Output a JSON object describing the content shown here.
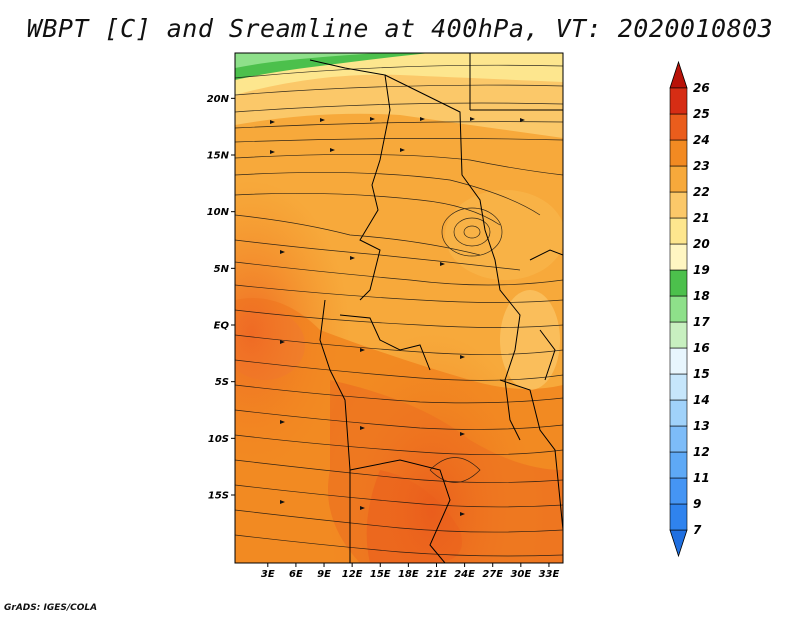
{
  "title": "WBPT [C] and Sreamline at 400hPa, VT: 2020010803",
  "footer": "GrADS: IGES/COLA",
  "map": {
    "lat_range": [
      -21,
      24
    ],
    "lon_range": [
      -0.5,
      34.5
    ],
    "lat_ticks": [
      "20N",
      "15N",
      "10N",
      "5N",
      "EQ",
      "5S",
      "10S",
      "15S"
    ],
    "lon_ticks": [
      "3E",
      "6E",
      "9E",
      "12E",
      "15E",
      "18E",
      "21E",
      "24E",
      "27E",
      "30E",
      "33E"
    ]
  },
  "colorbar": {
    "labels": [
      "7",
      "9",
      "11",
      "12",
      "13",
      "14",
      "15",
      "16",
      "17",
      "18",
      "19",
      "20",
      "21",
      "22",
      "23",
      "24",
      "25",
      "26"
    ],
    "colors": [
      "#1f6fe0",
      "#2f83ee",
      "#4595f4",
      "#5ea9f6",
      "#7dbcf8",
      "#a0d2fa",
      "#c6e6fb",
      "#e8f6fd",
      "#c8f0c0",
      "#8ee08a",
      "#4cc04c",
      "#fff6c2",
      "#fde68e",
      "#fbc869",
      "#f7a93b",
      "#f28a22",
      "#ea5d1c",
      "#d62d14",
      "#b81208"
    ]
  }
}
